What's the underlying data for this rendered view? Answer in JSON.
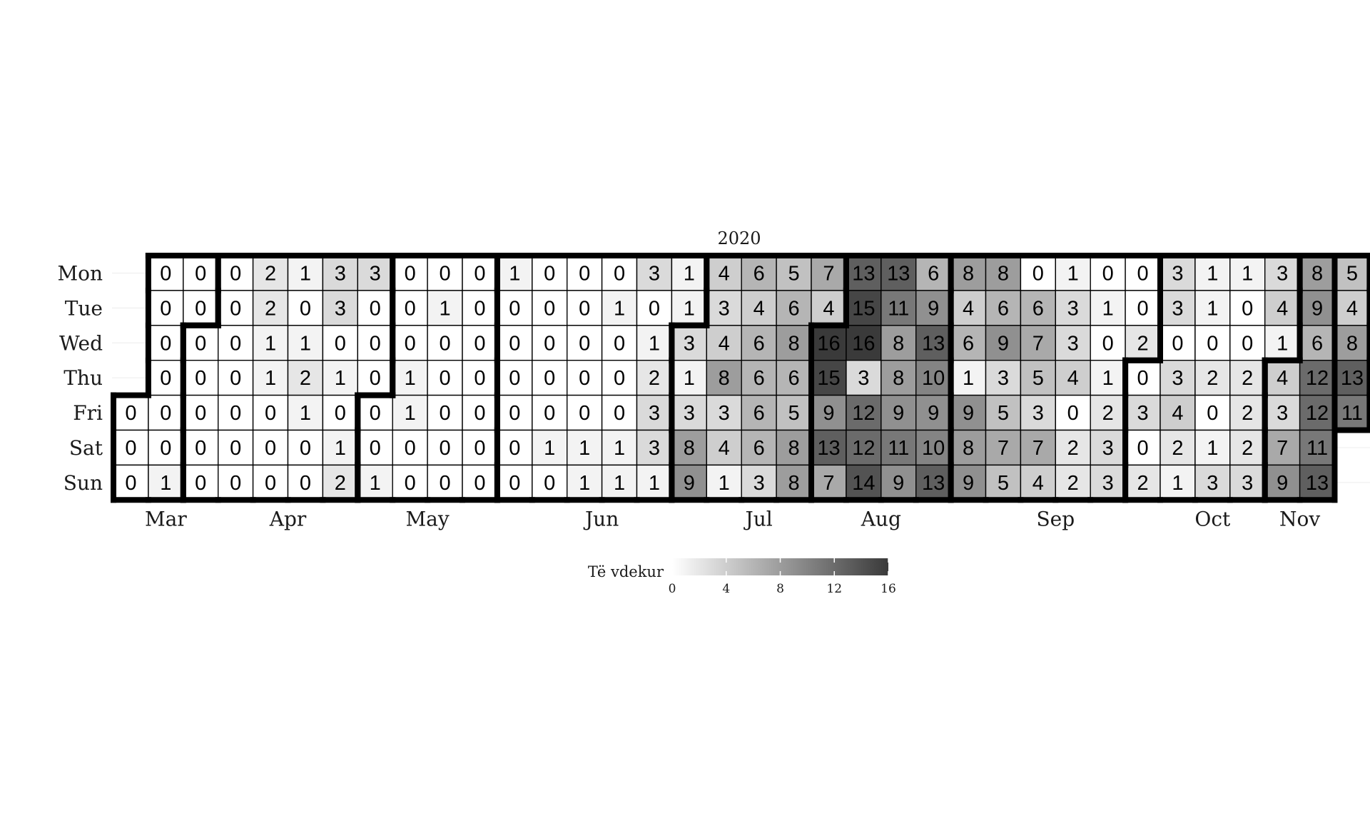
{
  "chart_data": {
    "type": "heatmap",
    "title": "2020",
    "legend": {
      "title": "Të vdekur",
      "min": 0,
      "max": 16,
      "ticks": [
        "0",
        "4",
        "8",
        "12",
        "16"
      ],
      "color_low": "#ffffff",
      "color_high": "#3a3a3a"
    },
    "days": [
      "Mon",
      "Tue",
      "Wed",
      "Thu",
      "Fri",
      "Sat",
      "Sun"
    ],
    "months": [
      {
        "label": "Mar",
        "first_week": 0,
        "last_week": 2
      },
      {
        "label": "Apr",
        "first_week": 3,
        "last_week": 7
      },
      {
        "label": "May",
        "first_week": 7,
        "last_week": 11
      },
      {
        "label": "Jun",
        "first_week": 11,
        "last_week": 16
      },
      {
        "label": "Jul",
        "first_week": 16,
        "last_week": 20
      },
      {
        "label": "Aug",
        "first_week": 20,
        "last_week": 24
      },
      {
        "label": "Sep",
        "first_week": 24,
        "last_week": 29
      },
      {
        "label": "Oct",
        "first_week": 29,
        "last_week": 33
      },
      {
        "label": "Nov",
        "first_week": 33,
        "last_week": 34
      }
    ],
    "weeks": [
      [
        null,
        null,
        null,
        null,
        0,
        0,
        0
      ],
      [
        0,
        0,
        0,
        0,
        0,
        0,
        1
      ],
      [
        0,
        0,
        0,
        0,
        0,
        0,
        0
      ],
      [
        0,
        0,
        0,
        0,
        0,
        0,
        0
      ],
      [
        2,
        2,
        1,
        1,
        0,
        0,
        0
      ],
      [
        1,
        0,
        1,
        2,
        1,
        0,
        0
      ],
      [
        3,
        3,
        0,
        1,
        0,
        1,
        2
      ],
      [
        3,
        0,
        0,
        0,
        0,
        0,
        1
      ],
      [
        0,
        0,
        0,
        1,
        1,
        0,
        0
      ],
      [
        0,
        1,
        0,
        0,
        0,
        0,
        0
      ],
      [
        0,
        0,
        0,
        0,
        0,
        0,
        0
      ],
      [
        1,
        0,
        0,
        0,
        0,
        0,
        0
      ],
      [
        0,
        0,
        0,
        0,
        0,
        1,
        0
      ],
      [
        0,
        0,
        0,
        0,
        0,
        1,
        1
      ],
      [
        0,
        1,
        0,
        0,
        0,
        1,
        1
      ],
      [
        3,
        0,
        1,
        2,
        3,
        3,
        1
      ],
      [
        1,
        1,
        3,
        1,
        3,
        8,
        9
      ],
      [
        4,
        3,
        4,
        8,
        3,
        4,
        1
      ],
      [
        6,
        4,
        6,
        6,
        6,
        6,
        3
      ],
      [
        5,
        6,
        8,
        6,
        5,
        8,
        8
      ],
      [
        7,
        4,
        16,
        15,
        9,
        13,
        7
      ],
      [
        13,
        15,
        16,
        3,
        12,
        12,
        14
      ],
      [
        13,
        11,
        8,
        8,
        9,
        11,
        9
      ],
      [
        6,
        9,
        13,
        10,
        9,
        10,
        13
      ],
      [
        8,
        4,
        6,
        1,
        9,
        8,
        9
      ],
      [
        8,
        6,
        9,
        3,
        5,
        7,
        5
      ],
      [
        0,
        6,
        7,
        5,
        3,
        7,
        4
      ],
      [
        1,
        3,
        3,
        4,
        0,
        2,
        2
      ],
      [
        0,
        1,
        0,
        1,
        2,
        3,
        3
      ],
      [
        0,
        0,
        2,
        0,
        3,
        0,
        2
      ],
      [
        3,
        3,
        0,
        3,
        4,
        2,
        1
      ],
      [
        1,
        1,
        0,
        2,
        0,
        1,
        3
      ],
      [
        1,
        0,
        0,
        2,
        2,
        2,
        3
      ],
      [
        3,
        4,
        1,
        4,
        3,
        7,
        9
      ],
      [
        8,
        9,
        6,
        12,
        12,
        11,
        13
      ],
      [
        5,
        4,
        8,
        13,
        11,
        null,
        null
      ]
    ]
  }
}
